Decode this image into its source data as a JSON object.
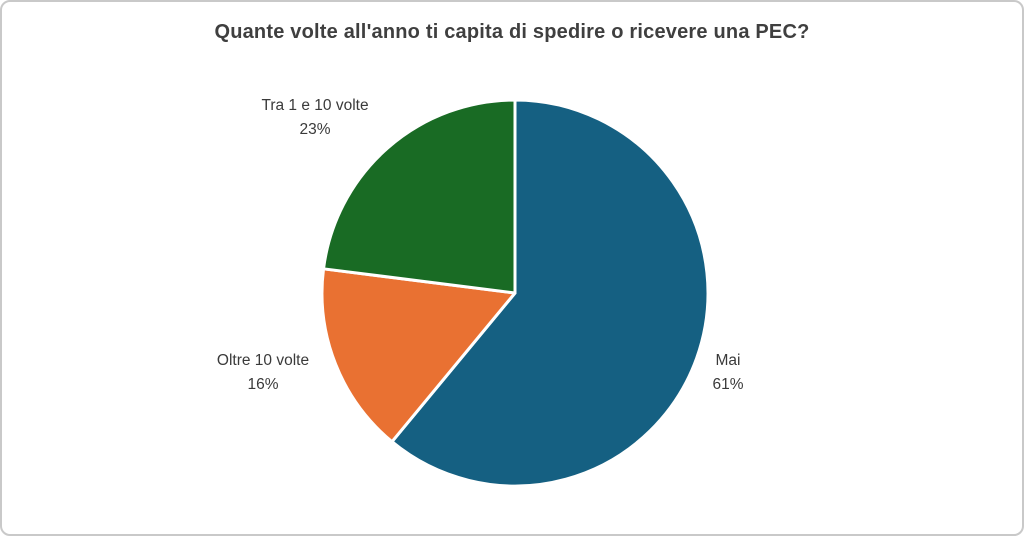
{
  "chart_data": {
    "type": "pie",
    "title": "Quante volte all'anno ti capita di spedire o ricevere una PEC?",
    "slices": [
      {
        "label": "Mai",
        "value": 61,
        "pct_label": "61%",
        "color": "#156082"
      },
      {
        "label": "Oltre 10 volte",
        "value": 16,
        "pct_label": "16%",
        "color": "#E97132"
      },
      {
        "label": "Tra 1 e 10 volte",
        "value": 23,
        "pct_label": "23%",
        "color": "#196B24"
      }
    ],
    "start_angle_deg": 0,
    "direction": "clockwise",
    "labels_position": "outside",
    "legend_position": "none",
    "slice_border_color": "#ffffff",
    "background_color": "#ffffff",
    "title_color": "#3f3f3f"
  }
}
